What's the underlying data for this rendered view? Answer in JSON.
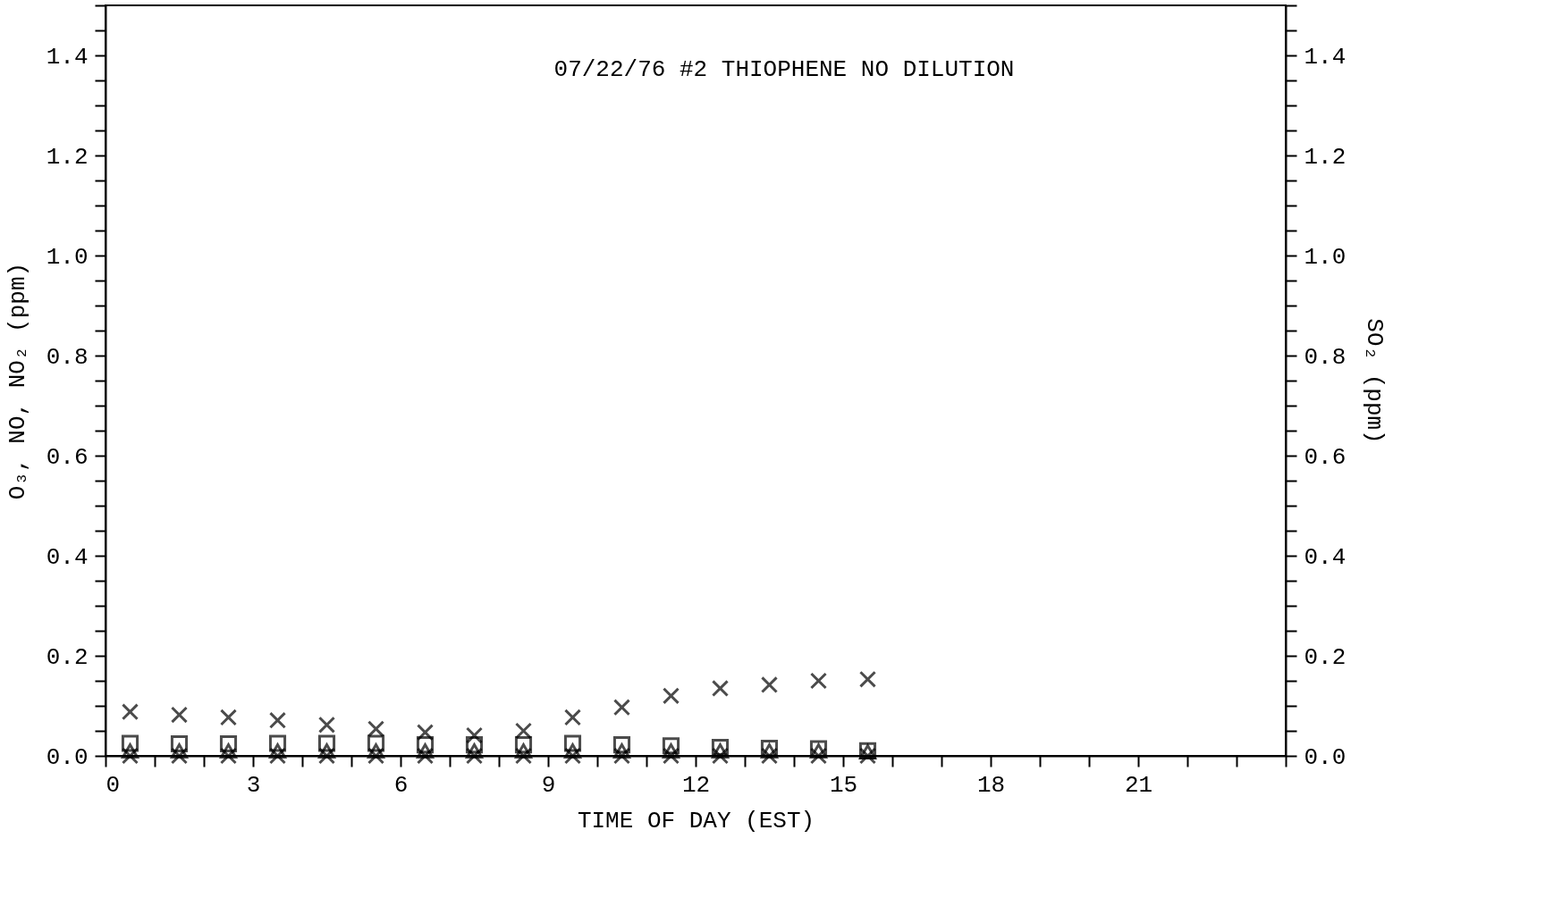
{
  "chart_data": {
    "type": "scatter",
    "title": "07/22/76 #2  THIOPHENE     NO DILUTION",
    "xlabel": "TIME OF DAY (EST)",
    "ylabel": "O₃, NO, NO₂ (ppm)",
    "y2label": "SO₂ (ppm)",
    "x": [
      0.5,
      1.5,
      2.5,
      3.5,
      4.5,
      5.5,
      6.5,
      7.5,
      8.5,
      9.5,
      10.5,
      11.5,
      12.5,
      13.5,
      14.5,
      15.5
    ],
    "series": [
      {
        "color": "#000000",
        "marker": "cross",
        "values": [
          0.088,
          0.082,
          0.077,
          0.071,
          0.062,
          0.054,
          0.047,
          0.041,
          0.05,
          0.077,
          0.097,
          0.12,
          0.135,
          0.142,
          0.15,
          0.153
        ]
      },
      {
        "color": "#000000",
        "marker": "square",
        "values": [
          0.025,
          0.024,
          0.024,
          0.025,
          0.025,
          0.025,
          0.022,
          0.022,
          0.022,
          0.025,
          0.022,
          0.02,
          0.017,
          0.015,
          0.014,
          0.01
        ]
      },
      {
        "color": "#000000",
        "marker": "triangle",
        "values": [
          0.01,
          0.01,
          0.01,
          0.01,
          0.01,
          0.01,
          0.01,
          0.01,
          0.01,
          0.01,
          0.01,
          0.01,
          0.01,
          0.01,
          0.01,
          0.008
        ]
      },
      {
        "color": "#000000",
        "marker": "cross",
        "values": [
          0,
          0,
          0,
          0,
          0,
          0,
          0,
          0,
          0,
          0,
          0,
          0,
          0,
          0,
          0,
          0
        ]
      }
    ],
    "xlim": [
      0,
      24
    ],
    "xticks": [
      0,
      {
        "value": 1,
        "label": null
      },
      {
        "value": 2,
        "label": null
      },
      3,
      {
        "value": 4,
        "label": null
      },
      {
        "value": 5,
        "label": null
      },
      6,
      {
        "value": 7,
        "label": null
      },
      {
        "value": 8,
        "label": null
      },
      9,
      {
        "value": 10,
        "label": null
      },
      {
        "value": 11,
        "label": null
      },
      12,
      {
        "value": 13,
        "label": null
      },
      {
        "value": 14,
        "label": null
      },
      15,
      {
        "value": 16,
        "label": null
      },
      {
        "value": 17,
        "label": null
      },
      18,
      {
        "value": 19,
        "label": null
      },
      {
        "value": 20,
        "label": null
      },
      21,
      {
        "value": 22,
        "label": null
      },
      {
        "value": 23,
        "label": null
      },
      {
        "value": 24,
        "label": null
      }
    ],
    "ylim": [
      0,
      1.5
    ],
    "yticks": [
      {
        "value": 0,
        "label": "0.0"
      },
      {
        "value": 0.05,
        "label": null
      },
      {
        "value": 0.1,
        "label": null
      },
      {
        "value": 0.15,
        "label": null
      },
      {
        "value": 0.2,
        "label": "0.2"
      },
      {
        "value": 0.25,
        "label": null
      },
      {
        "value": 0.3,
        "label": null
      },
      {
        "value": 0.35,
        "label": null
      },
      {
        "value": 0.4,
        "label": "0.4"
      },
      {
        "value": 0.45,
        "label": null
      },
      {
        "value": 0.5,
        "label": null
      },
      {
        "value": 0.55,
        "label": null
      },
      {
        "value": 0.6,
        "label": "0.6"
      },
      {
        "value": 0.65,
        "label": null
      },
      {
        "value": 0.7,
        "label": null
      },
      {
        "value": 0.75,
        "label": null
      },
      {
        "value": 0.8,
        "label": "0.8"
      },
      {
        "value": 0.85,
        "label": null
      },
      {
        "value": 0.9,
        "label": null
      },
      {
        "value": 0.95,
        "label": null
      },
      {
        "value": 1.0,
        "label": "1.0"
      },
      {
        "value": 1.05,
        "label": null
      },
      {
        "value": 1.1,
        "label": null
      },
      {
        "value": 1.15,
        "label": null
      },
      {
        "value": 1.2,
        "label": "1.2"
      },
      {
        "value": 1.25,
        "label": null
      },
      {
        "value": 1.3,
        "label": null
      },
      {
        "value": 1.35,
        "label": null
      },
      {
        "value": 1.4,
        "label": "1.4"
      },
      {
        "value": 1.45,
        "label": null
      },
      {
        "value": 1.5,
        "label": null
      }
    ],
    "y2lim": [
      0,
      1.5
    ],
    "y2ticks": [
      {
        "value": 0,
        "label": "0.0"
      },
      {
        "value": 0.05,
        "label": null
      },
      {
        "value": 0.1,
        "label": null
      },
      {
        "value": 0.15,
        "label": null
      },
      {
        "value": 0.2,
        "label": "0.2"
      },
      {
        "value": 0.25,
        "label": null
      },
      {
        "value": 0.3,
        "label": null
      },
      {
        "value": 0.35,
        "label": null
      },
      {
        "value": 0.4,
        "label": "0.4"
      },
      {
        "value": 0.45,
        "label": null
      },
      {
        "value": 0.5,
        "label": null
      },
      {
        "value": 0.55,
        "label": null
      },
      {
        "value": 0.6,
        "label": "0.6"
      },
      {
        "value": 0.65,
        "label": null
      },
      {
        "value": 0.7,
        "label": null
      },
      {
        "value": 0.75,
        "label": null
      },
      {
        "value": 0.8,
        "label": "0.8"
      },
      {
        "value": 0.85,
        "label": null
      },
      {
        "value": 0.9,
        "label": null
      },
      {
        "value": 0.95,
        "label": null
      },
      {
        "value": 1.0,
        "label": "1.0"
      },
      {
        "value": 1.05,
        "label": null
      },
      {
        "value": 1.1,
        "label": null
      },
      {
        "value": 1.15,
        "label": null
      },
      {
        "value": 1.2,
        "label": "1.2"
      },
      {
        "value": 1.25,
        "label": null
      },
      {
        "value": 1.3,
        "label": null
      },
      {
        "value": 1.35,
        "label": null
      },
      {
        "value": 1.4,
        "label": "1.4"
      },
      {
        "value": 1.45,
        "label": null
      },
      {
        "value": 1.5,
        "label": null
      }
    ],
    "grid": false
  }
}
